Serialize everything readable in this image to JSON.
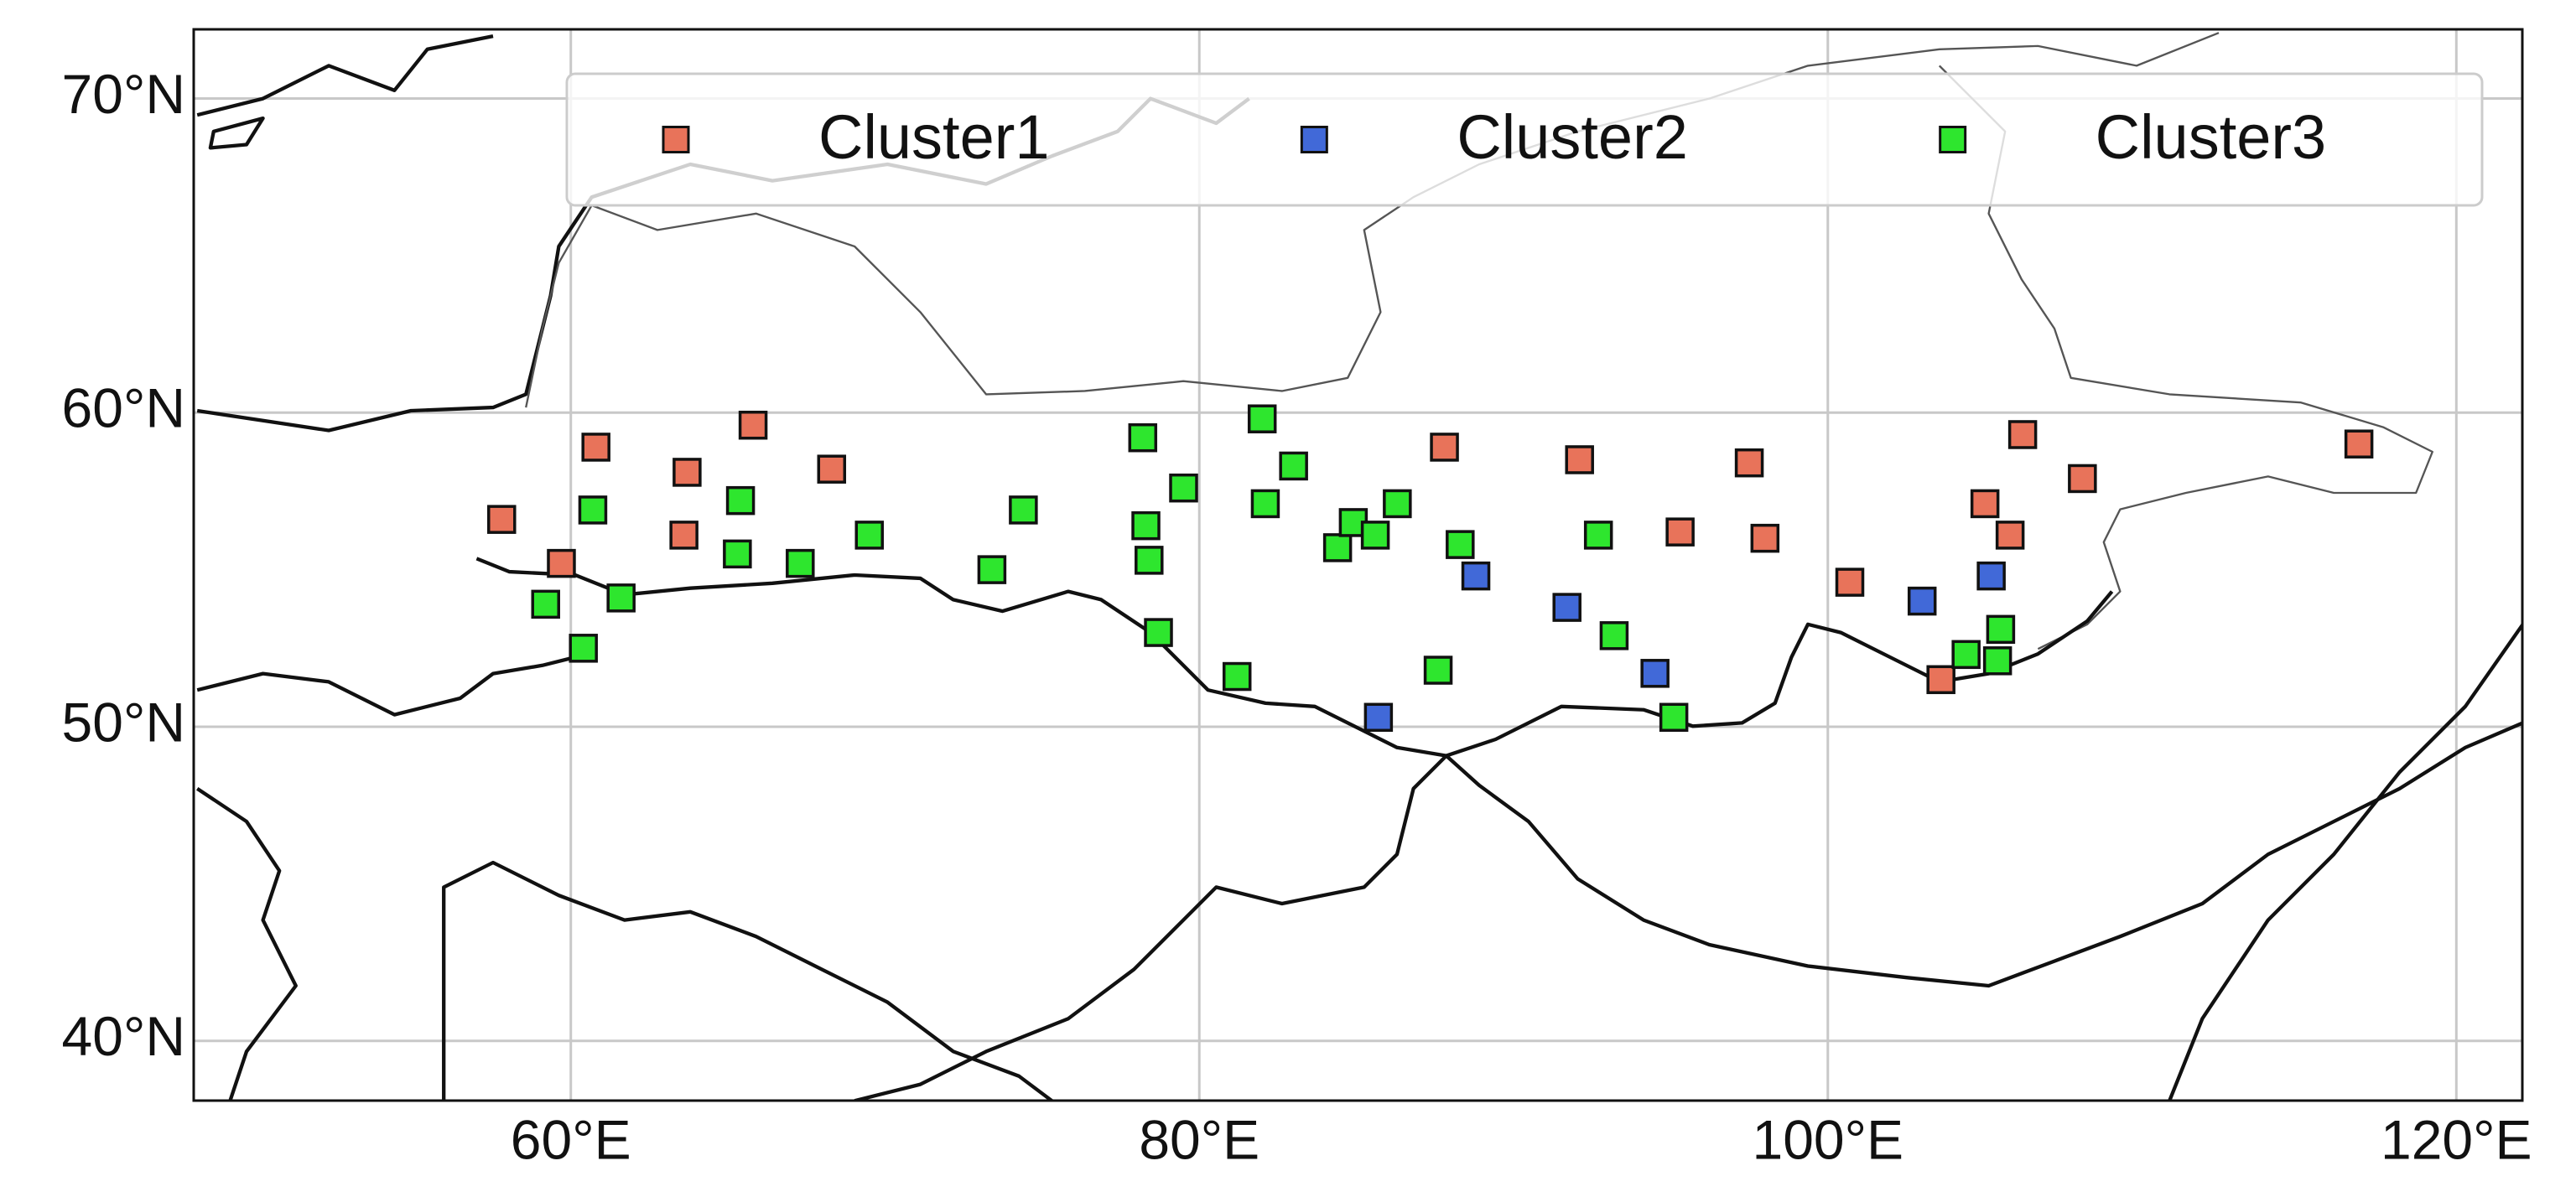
{
  "chart_data": {
    "type": "scatter",
    "xlim": [
      48.0,
      122.1
    ],
    "ylim": [
      38.1,
      72.2
    ],
    "xticks": [
      {
        "value": 60,
        "label": "60°E"
      },
      {
        "value": 80,
        "label": "80°E"
      },
      {
        "value": 100,
        "label": "100°E"
      },
      {
        "value": 120,
        "label": "120°E"
      }
    ],
    "yticks": [
      {
        "value": 40,
        "label": "40°N"
      },
      {
        "value": 50,
        "label": "50°N"
      },
      {
        "value": 60,
        "label": "60°N"
      },
      {
        "value": 70,
        "label": "70°N"
      }
    ],
    "grid": true,
    "legend": "upper center",
    "series": [
      {
        "name": "Cluster1",
        "color": "#e8735a",
        "x": [
          57.8,
          59.7,
          60.8,
          63.7,
          63.6,
          65.8,
          68.3,
          87.8,
          92.1,
          95.3,
          97.5,
          98.0,
          100.7,
          103.6,
          105.0,
          105.8,
          106.2,
          108.1,
          116.9
        ],
        "values": [
          56.6,
          55.2,
          58.9,
          58.1,
          56.1,
          59.6,
          58.2,
          58.9,
          58.5,
          56.2,
          58.4,
          56.0,
          54.6,
          51.5,
          57.1,
          56.1,
          59.3,
          57.9,
          59.0
        ]
      },
      {
        "name": "Cluster2",
        "color": "#4169d8",
        "x": [
          85.7,
          88.8,
          91.7,
          94.5,
          103.0,
          105.2
        ],
        "values": [
          50.3,
          54.8,
          53.8,
          51.7,
          54.0,
          54.8
        ]
      },
      {
        "name": "Cluster3",
        "color": "#2ee62e",
        "x": [
          60.7,
          59.2,
          60.4,
          61.6,
          65.4,
          65.3,
          67.3,
          69.5,
          73.4,
          74.4,
          78.2,
          78.3,
          78.4,
          78.7,
          79.5,
          82.0,
          82.1,
          83.0,
          84.4,
          84.9,
          85.6,
          86.3,
          87.6,
          88.3,
          81.2,
          92.7,
          93.2,
          95.1,
          104.4,
          105.5,
          105.4
        ],
        "values": [
          56.9,
          53.9,
          52.5,
          54.1,
          57.2,
          55.5,
          55.2,
          56.1,
          55.0,
          56.9,
          59.2,
          56.4,
          55.3,
          53.0,
          57.6,
          59.8,
          57.1,
          58.3,
          55.7,
          56.5,
          56.1,
          57.1,
          51.8,
          55.8,
          51.6,
          56.1,
          52.9,
          50.3,
          52.3,
          53.1,
          52.1
        ]
      }
    ]
  }
}
